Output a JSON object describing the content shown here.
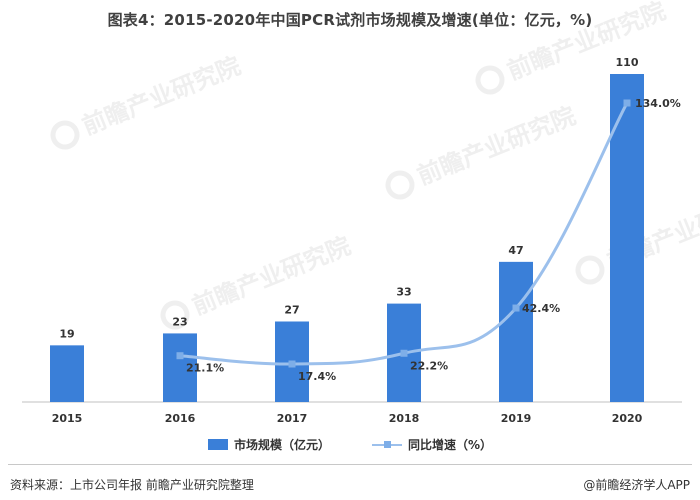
{
  "header": {
    "title": "图表4：2015-2020年中国PCR试剂市场规模及增速(单位：亿元，%)"
  },
  "chart_data": {
    "type": "bar",
    "title": "图表4：2015-2020年中国PCR试剂市场规模及增速(单位：亿元，%)",
    "categories": [
      "2015",
      "2016",
      "2017",
      "2018",
      "2019",
      "2020"
    ],
    "series": [
      {
        "name": "市场规模（亿元）",
        "type": "bar",
        "values": [
          19,
          23,
          27,
          33,
          47,
          110
        ],
        "color": "#3a7fd8"
      },
      {
        "name": "同比增速（%）",
        "type": "line",
        "values": [
          null,
          21.1,
          17.4,
          22.2,
          42.4,
          134.0
        ],
        "labels": [
          "",
          "21.1%",
          "17.4%",
          "22.2%",
          "42.4%",
          "134.0%"
        ],
        "color": "#9cc0ec"
      }
    ],
    "bar_data_labels": [
      "19",
      "23",
      "27",
      "33",
      "47",
      "110"
    ],
    "ylim_bars": [
      0,
      110
    ],
    "ylim_line": [
      0,
      134
    ],
    "grid": false,
    "legend_position": "bottom-center"
  },
  "legend": {
    "bar_label": "市场规模（亿元）",
    "line_label": "同比增速（%）"
  },
  "footer": {
    "source": "资料来源：上市公司年报 前瞻产业研究院整理",
    "brand": "@前瞻经济学人APP"
  },
  "watermark": {
    "text": "前瞻产业研究院"
  }
}
